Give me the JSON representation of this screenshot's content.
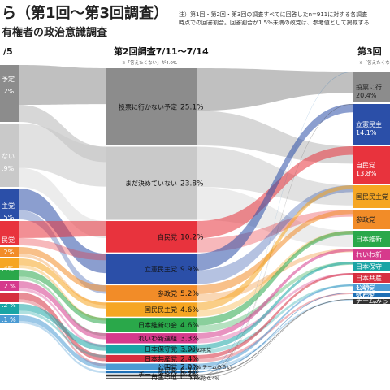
{
  "header": {
    "title": "ら（第1回〜第3回調査）",
    "subtitle": "有権者の政治意識調査",
    "note_line1": "注）第1回・第2回・第3回の調査すべてに回答したn=911に対する各調査",
    "note_line2": "時点での回答割合。回答割合が1.5%未満の政党は、参考値として掲載する"
  },
  "col1": {
    "header": "/5"
  },
  "col2": {
    "header": "第2回調査7/11〜7/14",
    "note": "※「答えたくない」が4.0%"
  },
  "col3": {
    "header": "第3回",
    "note": "※「答えたくない"
  },
  "chart_data": [
    {
      "type": "sankey",
      "title": "第2回調査7/11〜7/14",
      "categories": [
        "投票に行かない予定",
        "まだ決めていない",
        "自民党",
        "立憲民主党",
        "参政党",
        "国民民主党",
        "日本維新の会",
        "れいわ新選組",
        "日本保守党",
        "日本共産党",
        "公明党",
        "社民党",
        "チームみらい",
        "再生の道"
      ],
      "values": [
        25.1,
        23.8,
        10.2,
        9.9,
        5.2,
        4.6,
        4.6,
        3.3,
        3.0,
        2.4,
        2.0,
        0.7,
        0.7,
        0.3
      ],
      "labels": [
        "25.1%",
        "23.8%",
        "10.2%",
        "9.9%",
        "5.2%",
        "4.6%",
        "4.6%",
        "3.3%",
        "3.0%",
        "2.4%",
        "2.0%",
        "0.7%",
        "0.7%",
        "0.3%"
      ],
      "colors": [
        "#8c8c8c",
        "#c9c9c9",
        "#e8333d",
        "#2b4fa8",
        "#f28c28",
        "#f6a623",
        "#2aa84a",
        "#d63a8c",
        "#1aa5a5",
        "#d62f3f",
        "#4b9bd4",
        "#1f6fb5",
        "#333333",
        "#666666"
      ]
    },
    {
      "type": "sankey",
      "title": "第1回",
      "visible_labels": [
        "予定",
        ".2%",
        "ない",
        ".9%",
        "主党",
        ".5%",
        "民党",
        ".2%",
        ".4%",
        ".2 %",
        ".2 %",
        ".1 %",
        ".5 %",
        ".2 %",
        ".1 %",
        "ない 0.2%",
        "0.2%"
      ],
      "colors": [
        "#8c8c8c",
        "#c9c9c9",
        "#2b4fa8",
        "#e8333d",
        "#f28c28",
        "#f6a623",
        "#2aa84a",
        "#d63a8c",
        "#d62f3f",
        "#1aa5a5",
        "#4b9bd4"
      ]
    },
    {
      "type": "sankey",
      "title": "第3回",
      "categories": [
        "投票に行",
        "立憲民主",
        "自民党",
        "国民民主党",
        "参政党",
        "日本維新",
        "れいわ新",
        "日本保守",
        "日本共産",
        "公明党",
        "社民党",
        "チームみら"
      ],
      "labels": [
        "20.4%",
        "14.1%",
        "13.8%",
        "",
        "",
        "",
        "",
        "",
        "",
        "1.4%",
        "0.7%",
        ""
      ],
      "colors": [
        "#8c8c8c",
        "#2b4fa8",
        "#e8333d",
        "#f6a623",
        "#f28c28",
        "#2aa84a",
        "#d63a8c",
        "#1aa5a5",
        "#d62f3f",
        "#4b9bd4",
        "#1f6fb5",
        "#333333"
      ]
    }
  ],
  "flow_labels": {
    "small_party_komei": "2.0% 公明党",
    "small_party_team": "0.7% チームみらい",
    "small_party_nhk": "NHK党 0.4%",
    "small_party_saisei": "0.3%"
  }
}
